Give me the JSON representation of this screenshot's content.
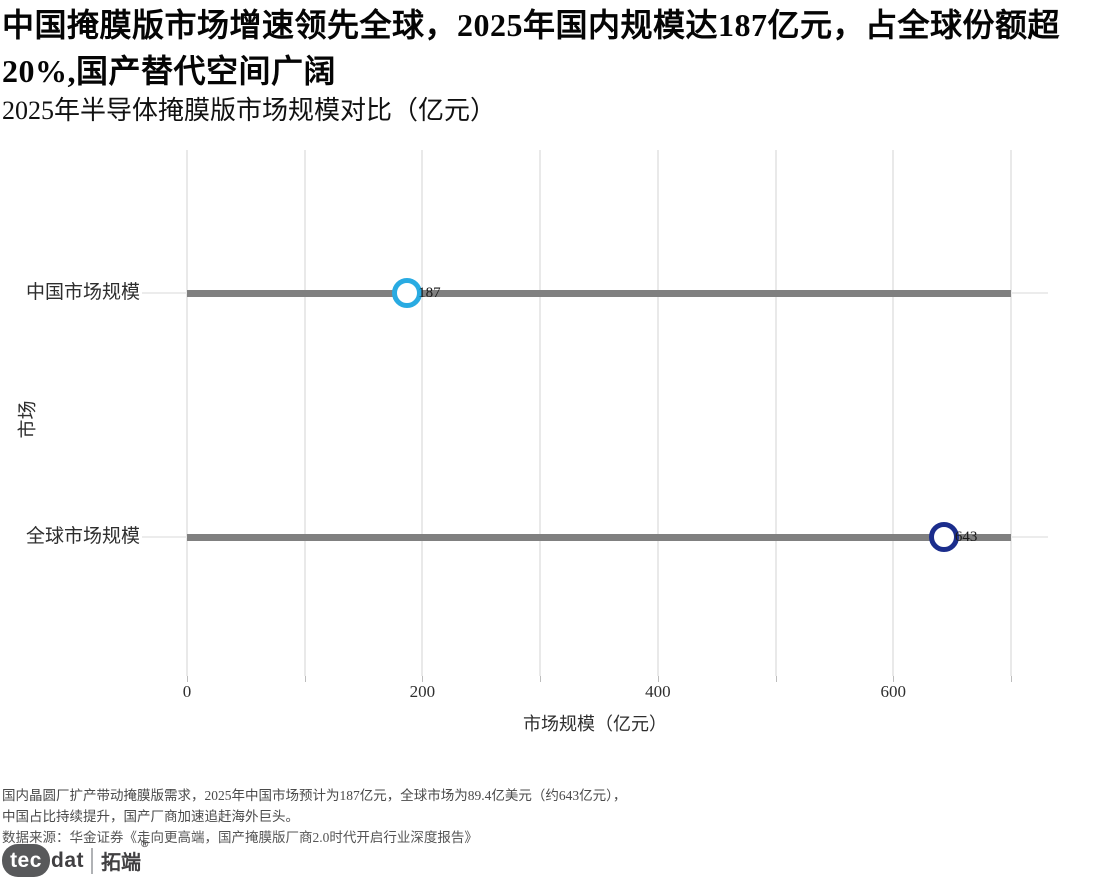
{
  "header": {
    "title": "中国掩膜版市场增速领先全球，2025年国内规模达187亿元，占全球份额超20%,国产替代空间广阔"
  },
  "chart_data": {
    "type": "scatter",
    "subtype": "dot-plot-with-baseline",
    "title": "2025年半导体掩膜版市场规模对比（亿元）",
    "categories": [
      "中国市场规模",
      "全球市场规模"
    ],
    "values": [
      187,
      643
    ],
    "value_labels": [
      "187",
      "643"
    ],
    "xlabel": "市场规模（亿元）",
    "ylabel": "市场",
    "xlim": [
      0,
      700
    ],
    "xticks": [
      0,
      200,
      400,
      600
    ],
    "grid_interval": 100,
    "grid": true,
    "legend": false,
    "marker_colors": [
      "#29abe2",
      "#1b2d8c"
    ],
    "baseline_color": "#808080"
  },
  "notes": {
    "line1": "国内晶圆厂扩产带动掩膜版需求，2025年中国市场预计为187亿元，全球市场为89.4亿美元（约643亿元），",
    "line2": "中国占比持续提升，国产厂商加速追赶海外巨头。",
    "source": "数据来源：华金证券《走向更高端，国产掩膜版厂商2.0时代开启行业深度报告》"
  },
  "logo": {
    "part1": "tec",
    "part2": "dat",
    "part3": "拓端",
    "reg": "®"
  }
}
